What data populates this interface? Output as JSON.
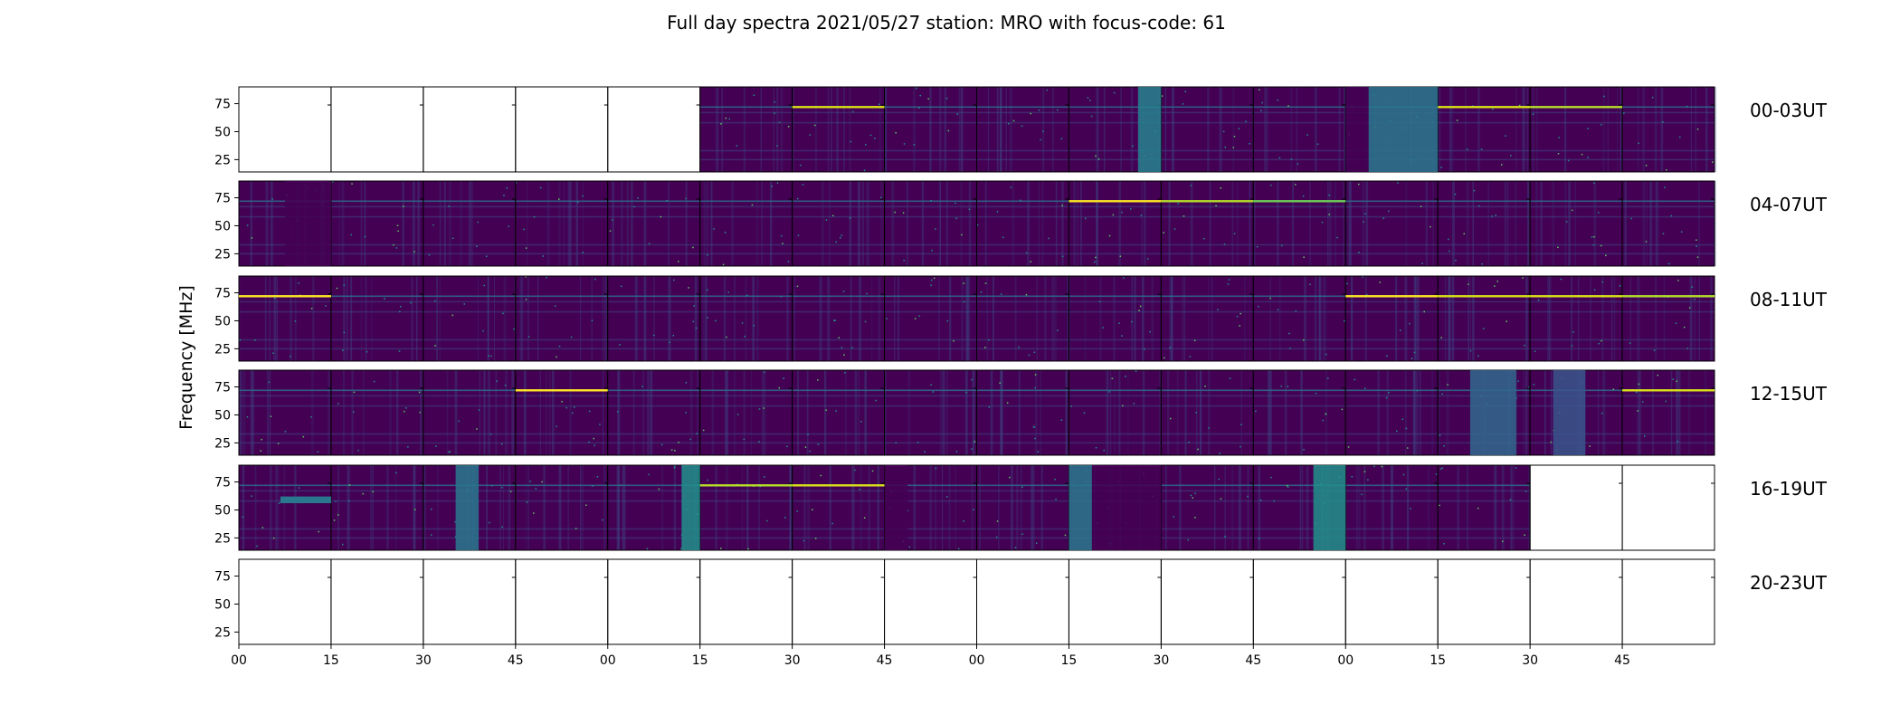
{
  "chart_data": {
    "type": "heatmap",
    "title": "Full day spectra 2021/05/27 station: MRO with focus-code: 61",
    "ylabel": "Frequency [MHz]",
    "xlabel": "",
    "ylim": [
      14,
      90
    ],
    "yticks": [
      25,
      50,
      75
    ],
    "xtick_labels": [
      "00",
      "15",
      "30",
      "45",
      "00",
      "15",
      "30",
      "45",
      "00",
      "15",
      "30",
      "45",
      "00",
      "15",
      "30",
      "45"
    ],
    "colormap": [
      "#440154",
      "#3b528b",
      "#21918c",
      "#5ec962",
      "#fde725"
    ],
    "rows": [
      {
        "label": "00-03UT",
        "present": [
          0,
          0,
          0,
          0,
          0,
          1,
          1,
          1,
          1,
          1,
          1,
          1,
          1,
          1,
          1,
          1
        ]
      },
      {
        "label": "04-07UT",
        "present": [
          1,
          1,
          1,
          1,
          1,
          1,
          1,
          1,
          1,
          1,
          1,
          1,
          1,
          1,
          1,
          1
        ]
      },
      {
        "label": "08-11UT",
        "present": [
          1,
          1,
          1,
          1,
          1,
          1,
          1,
          1,
          1,
          1,
          1,
          1,
          1,
          1,
          1,
          1
        ]
      },
      {
        "label": "12-15UT",
        "present": [
          1,
          1,
          1,
          1,
          1,
          1,
          1,
          1,
          1,
          1,
          1,
          1,
          1,
          1,
          1,
          1
        ]
      },
      {
        "label": "16-19UT",
        "present": [
          1,
          1,
          1,
          1,
          1,
          1,
          1,
          1,
          1,
          1,
          1,
          1,
          1,
          1,
          0,
          0
        ]
      },
      {
        "label": "20-23UT",
        "present": [
          0,
          0,
          0,
          0,
          0,
          0,
          0,
          0,
          0,
          0,
          0,
          0,
          0,
          0,
          0,
          0
        ]
      }
    ],
    "rfi_lines_mhz": [
      72,
      67,
      58,
      33,
      25
    ],
    "features": [
      {
        "row": 0,
        "col": 6,
        "type": "line",
        "f": 72,
        "color": "#d8e219"
      },
      {
        "row": 0,
        "col": 9,
        "type": "band",
        "from": 0.75,
        "to": 1.0,
        "color": "#26828e"
      },
      {
        "row": 0,
        "col": 12,
        "type": "band",
        "from": 0.0,
        "to": 0.25,
        "color": "#440154"
      },
      {
        "row": 0,
        "col": 12,
        "type": "band",
        "from": 0.25,
        "to": 1.0,
        "color": "#2a788e"
      },
      {
        "row": 0,
        "col": 13,
        "type": "line",
        "f": 72,
        "color": "#d8e219"
      },
      {
        "row": 0,
        "col": 14,
        "type": "line",
        "f": 72,
        "color": "#b5de2b"
      },
      {
        "row": 1,
        "col": 0,
        "type": "band",
        "from": 0.5,
        "to": 1.0,
        "color": "#440154"
      },
      {
        "row": 1,
        "col": 9,
        "type": "line",
        "f": 72,
        "color": "#fde725"
      },
      {
        "row": 1,
        "col": 10,
        "type": "line",
        "f": 72,
        "color": "#b5de2b"
      },
      {
        "row": 1,
        "col": 11,
        "type": "line",
        "f": 72,
        "color": "#6ece58"
      },
      {
        "row": 2,
        "col": 0,
        "type": "line",
        "f": 72,
        "color": "#fde725"
      },
      {
        "row": 2,
        "col": 12,
        "type": "line",
        "f": 72,
        "color": "#fde725"
      },
      {
        "row": 2,
        "col": 13,
        "type": "line",
        "f": 72,
        "color": "#d8e219"
      },
      {
        "row": 2,
        "col": 14,
        "type": "line",
        "f": 72,
        "color": "#d8e219"
      },
      {
        "row": 2,
        "col": 15,
        "type": "line",
        "f": 72,
        "color": "#b5de2b"
      },
      {
        "row": 3,
        "col": 3,
        "type": "line",
        "f": 72,
        "color": "#fde725"
      },
      {
        "row": 3,
        "col": 15,
        "type": "line",
        "f": 72,
        "color": "#d8e219"
      },
      {
        "row": 3,
        "col": 13,
        "type": "band",
        "from": 0.35,
        "to": 0.85,
        "color": "#31688e"
      },
      {
        "row": 3,
        "col": 14,
        "type": "band",
        "from": 0.25,
        "to": 0.6,
        "color": "#39568c"
      },
      {
        "row": 4,
        "col": 0,
        "type": "hband",
        "fmin": 56,
        "fmax": 62,
        "color": "#2a788e"
      },
      {
        "row": 4,
        "col": 2,
        "type": "band",
        "from": 0.35,
        "to": 0.6,
        "color": "#2a788e"
      },
      {
        "row": 4,
        "col": 4,
        "type": "band",
        "from": 0.8,
        "to": 1.0,
        "color": "#21918c"
      },
      {
        "row": 4,
        "col": 5,
        "type": "line",
        "f": 72,
        "color": "#b5de2b"
      },
      {
        "row": 4,
        "col": 6,
        "type": "line",
        "f": 72,
        "color": "#d8e219"
      },
      {
        "row": 4,
        "col": 7,
        "type": "band",
        "from": 0.0,
        "to": 0.25,
        "color": "#440154"
      },
      {
        "row": 4,
        "col": 9,
        "type": "band",
        "from": 0.0,
        "to": 0.25,
        "color": "#2a788e"
      },
      {
        "row": 4,
        "col": 9,
        "type": "band",
        "from": 0.25,
        "to": 1.0,
        "color": "#440154"
      },
      {
        "row": 4,
        "col": 11,
        "type": "band",
        "from": 0.65,
        "to": 1.0,
        "color": "#21918c"
      }
    ]
  }
}
